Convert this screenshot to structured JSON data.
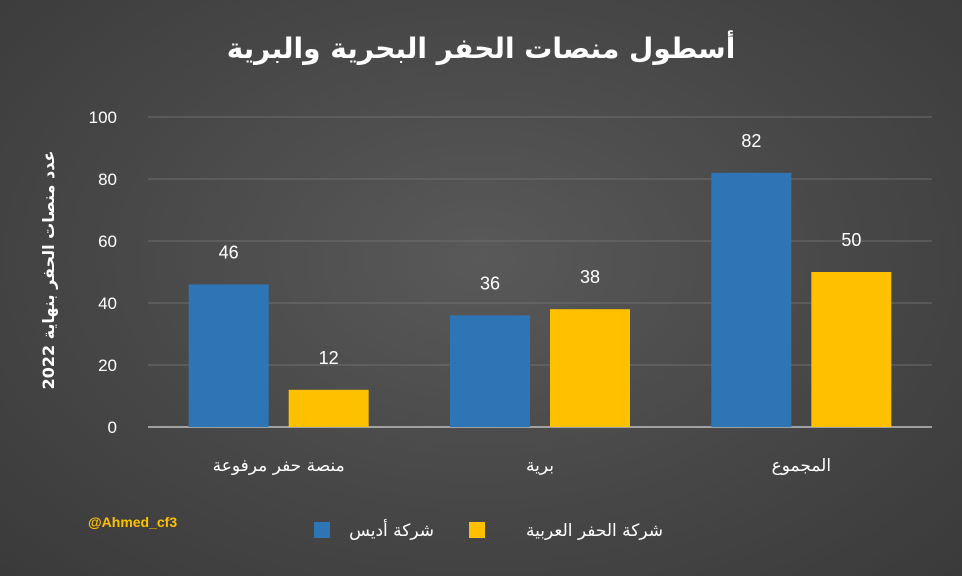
{
  "chart_data": {
    "type": "bar",
    "title": "أسطول منصات الحفر البحرية والبرية",
    "ylabel": "عدد منصات الحفر بنهاية 2022",
    "xlabel": "",
    "ylim": [
      0,
      100
    ],
    "yticks": [
      0,
      20,
      40,
      60,
      80,
      100
    ],
    "categories": [
      "منصة حفر مرفوعة",
      "برية",
      "المجموع"
    ],
    "series": [
      {
        "name": "شركة أديس",
        "color": "#2e75b6",
        "values": [
          46,
          36,
          82
        ]
      },
      {
        "name": "شركة الحفر العربية",
        "color": "#ffc000",
        "values": [
          12,
          38,
          50
        ]
      }
    ],
    "grid": true,
    "legend_position": "bottom"
  },
  "watermark": "@Ahmed_cf3"
}
